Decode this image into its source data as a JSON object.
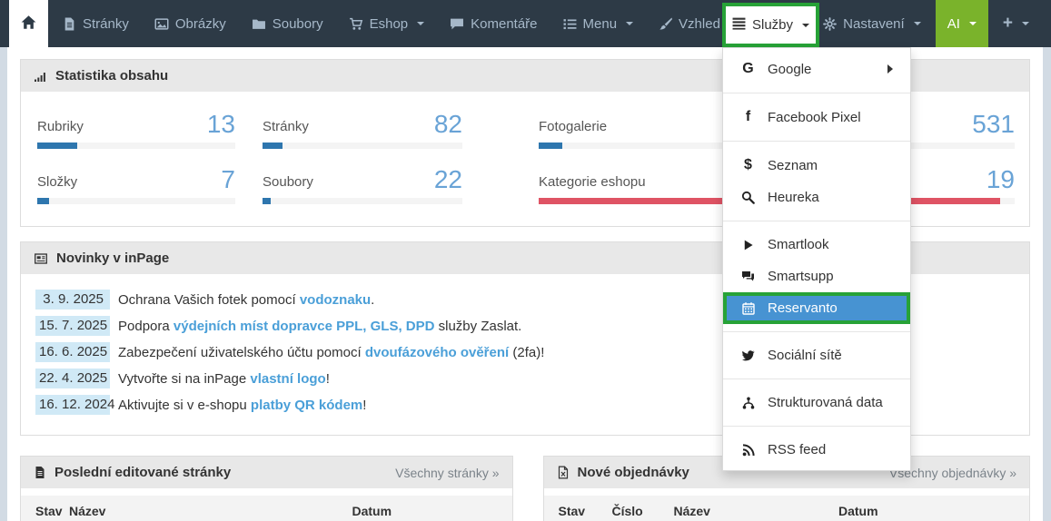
{
  "navbar": {
    "items": [
      {
        "icon": "home-icon",
        "label": ""
      },
      {
        "icon": "pages-icon",
        "label": "Stránky"
      },
      {
        "icon": "images-icon",
        "label": "Obrázky"
      },
      {
        "icon": "folder-icon",
        "label": "Soubory"
      },
      {
        "icon": "cart-icon",
        "label": "Eshop",
        "caret": true
      },
      {
        "icon": "comment-icon",
        "label": "Komentáře"
      },
      {
        "icon": "list-icon",
        "label": "Menu",
        "caret": true
      },
      {
        "icon": "brush-icon",
        "label": "Vzhled",
        "caret": true
      },
      {
        "icon": "server-icon",
        "label": "Služby",
        "caret": true,
        "open": true
      },
      {
        "icon": "gear-icon",
        "label": "Nastavení",
        "caret": true
      },
      {
        "icon": "none",
        "label": "AI",
        "caret": true
      },
      {
        "icon": "plus-icon",
        "label": "+",
        "caret": true
      }
    ]
  },
  "services_menu": {
    "items": [
      {
        "label": "Google",
        "glyph": "G",
        "icon": "google-g-icon",
        "submenu": true
      },
      {
        "label": "Facebook Pixel",
        "glyph": "f",
        "icon": "facebook-icon"
      },
      {
        "label": "Seznam",
        "glyph": "$",
        "icon": "dollar-icon"
      },
      {
        "label": "Heureka",
        "icon": "search-icon"
      },
      {
        "label": "Smartlook",
        "icon": "play-icon"
      },
      {
        "label": "Smartsupp",
        "icon": "comments-icon"
      },
      {
        "label": "Reservanto",
        "icon": "calendar-icon",
        "selected": true
      },
      {
        "label": "Sociální sítě",
        "icon": "twitter-icon"
      },
      {
        "label": "Strukturovaná data",
        "icon": "sitemap-icon"
      },
      {
        "label": "RSS feed",
        "icon": "rss-icon"
      }
    ]
  },
  "stats": {
    "title": "Statistika obsahu",
    "items": [
      {
        "label": "Rubriky",
        "value": 13,
        "bar_pct": 20,
        "bar_color": "#2e76ae"
      },
      {
        "label": "Stránky",
        "value": 82,
        "bar_pct": 10,
        "bar_color": "#2e76ae"
      },
      {
        "label": "Fotogalerie",
        "value": 531,
        "bar_pct": 5,
        "bar_color": "#2e76ae"
      },
      {
        "label": "Složky",
        "value": 7,
        "bar_pct": 6,
        "bar_color": "#2e76ae"
      },
      {
        "label": "Soubory",
        "value": 22,
        "bar_pct": 4,
        "bar_color": "#2e76ae"
      },
      {
        "label": "Kategorie eshopu",
        "value": 19,
        "bar_pct": 97,
        "bar_color": "#df5364"
      }
    ]
  },
  "news": {
    "title": "Novinky v inPage",
    "items": [
      {
        "date": "3. 9. 2025",
        "before": "Ochrana Vašich fotek pomocí ",
        "link": "vodoznaku",
        "after": "."
      },
      {
        "date": "15. 7. 2025",
        "before": "Podpora ",
        "link": "výdejních míst dopravce PPL, GLS, DPD",
        "after": " služby Zaslat."
      },
      {
        "date": "16. 6. 2025",
        "before": "Zabezpečení uživatelského účtu pomocí ",
        "link": "dvoufázového ověření",
        "after": " (2fa)!"
      },
      {
        "date": "22. 4. 2025",
        "before": "Vytvořte si na inPage ",
        "link": "vlastní logo",
        "after": "!"
      },
      {
        "date": "16. 12. 2024",
        "before": "Aktivujte si v e-shopu ",
        "link": "platby QR kódem",
        "after": "!"
      }
    ]
  },
  "pages_panel": {
    "title": "Poslední editované stránky",
    "link": "Všechny stránky »",
    "columns": [
      "Stav",
      "Název",
      "Datum"
    ]
  },
  "orders_panel": {
    "title": "Nové objednávky",
    "link": "Všechny objednávky »",
    "columns": [
      "Stav",
      "Číslo",
      "Název",
      "Datum"
    ]
  },
  "colors": {
    "navbar_bg": "#2d3a46",
    "highlight_green": "#27a237",
    "selected_blue": "#4793d2",
    "ai_green": "#7ab32b",
    "bar_blue": "#2e76ae",
    "bar_red": "#df5364",
    "stat_number_blue": "#69a3d6",
    "link_blue": "#4a9fd8",
    "date_badge_bg": "#d0e9f6"
  }
}
